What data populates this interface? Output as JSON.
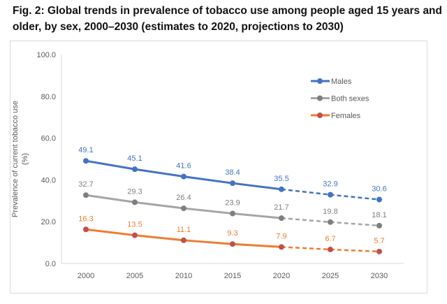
{
  "chart_data": {
    "type": "line",
    "title": "Fig. 2: Global trends in prevalence of tobacco use among people aged 15 years and older, by sex, 2000–2030 (estimates to 2020, projections to 2030)",
    "ylabel": "Prevalence of current tobacco use (%)",
    "xlabel": "",
    "x": [
      2000,
      2005,
      2010,
      2015,
      2020,
      2025,
      2030
    ],
    "x_tick_labels": [
      "2000",
      "2005",
      "2010",
      "2015",
      "2020",
      "2025",
      "2030"
    ],
    "ylim": [
      0,
      100
    ],
    "y_tick_labels": [
      "0.0",
      "20.0",
      "40.0",
      "60.0",
      "80.0",
      "100.0"
    ],
    "y_ticks": [
      0,
      20,
      40,
      60,
      80,
      100
    ],
    "grid": false,
    "legend_placement": "top-right",
    "projection_start": 2020,
    "series": [
      {
        "name": "Males",
        "values": [
          49.1,
          45.1,
          41.6,
          38.4,
          35.5,
          32.9,
          30.6
        ],
        "labels": [
          "49.1",
          "45.1",
          "41.6",
          "38.4",
          "35.5",
          "32.9",
          "30.6"
        ],
        "line_color": "#4472C4",
        "marker_color": "#4472C4",
        "label_color": "#4472C4"
      },
      {
        "name": "Both sexes",
        "values": [
          32.7,
          29.3,
          26.4,
          23.9,
          21.7,
          19.8,
          18.1
        ],
        "labels": [
          "32.7",
          "29.3",
          "26.4",
          "23.9",
          "21.7",
          "19.8",
          "18.1"
        ],
        "line_color": "#A5A5A5",
        "marker_color": "#7F7F7F",
        "label_color": "#7F7F7F"
      },
      {
        "name": "Females",
        "values": [
          16.3,
          13.5,
          11.1,
          9.3,
          7.9,
          6.7,
          5.7
        ],
        "labels": [
          "16.3",
          "13.5",
          "11.1",
          "9.3",
          "7.9",
          "6.7",
          "5.7"
        ],
        "line_color": "#ED7D31",
        "marker_color": "#C0504D",
        "label_color": "#ED7D31"
      }
    ]
  }
}
